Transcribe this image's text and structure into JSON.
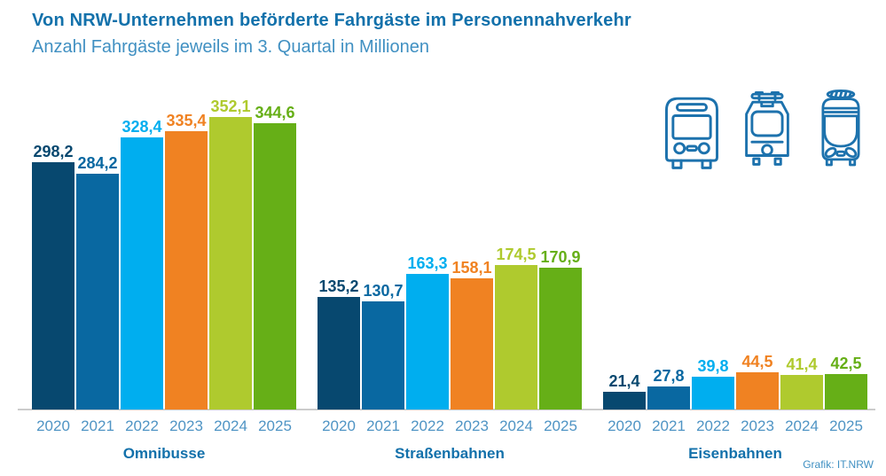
{
  "header": {
    "title": "Von NRW-Unternehmen beförderte Fahrgäste im Personennahverkehr",
    "subtitle": "Anzahl Fahrgäste jeweils im 3. Quartal in Millionen"
  },
  "footer": {
    "credit": "Grafik: IT.NRW"
  },
  "icons": [
    {
      "name": "bus-icon"
    },
    {
      "name": "tram-icon"
    },
    {
      "name": "train-icon"
    }
  ],
  "colors": {
    "title": "#1371ab",
    "subtitle": "#4090c2",
    "year_label": "#4f94c4",
    "group_label": "#1371ab",
    "baseline": "#cccccc",
    "icon_stroke": "#1d72ad",
    "series": [
      "#07486f",
      "#0968a1",
      "#00aeef",
      "#f08222",
      "#afca2e",
      "#66af17"
    ]
  },
  "chart_data": {
    "type": "bar",
    "title": "Von NRW-Unternehmen beförderte Fahrgäste im Personennahverkehr",
    "subtitle": "Anzahl Fahrgäste jeweils im 3. Quartal in Millionen",
    "unit": "Millionen Fahrgäste (3. Quartal)",
    "categories": [
      "2020",
      "2021",
      "2022",
      "2023",
      "2024",
      "2025"
    ],
    "series_colors": [
      "#07486f",
      "#0968a1",
      "#00aeef",
      "#f08222",
      "#afca2e",
      "#66af17"
    ],
    "groups": [
      {
        "name": "Omnibusse",
        "values": [
          298.2,
          284.2,
          328.4,
          335.4,
          352.1,
          344.6
        ],
        "value_labels": [
          "298,2",
          "284,2",
          "328,4",
          "335,4",
          "352,1",
          "344,6"
        ]
      },
      {
        "name": "Straßenbahnen",
        "values": [
          135.2,
          130.7,
          163.3,
          158.1,
          174.5,
          170.9
        ],
        "value_labels": [
          "135,2",
          "130,7",
          "163,3",
          "158,1",
          "174,5",
          "170,9"
        ]
      },
      {
        "name": "Eisenbahnen",
        "values": [
          21.4,
          27.8,
          39.8,
          44.5,
          41.4,
          42.5
        ],
        "value_labels": [
          "21,4",
          "27,8",
          "39,8",
          "44,5",
          "41,4",
          "42,5"
        ]
      }
    ],
    "ylim": [
      0,
      365
    ],
    "grid": false,
    "legend": "none",
    "axes_shown": false,
    "value_labels_shown": true,
    "credit": "Grafik: IT.NRW"
  }
}
